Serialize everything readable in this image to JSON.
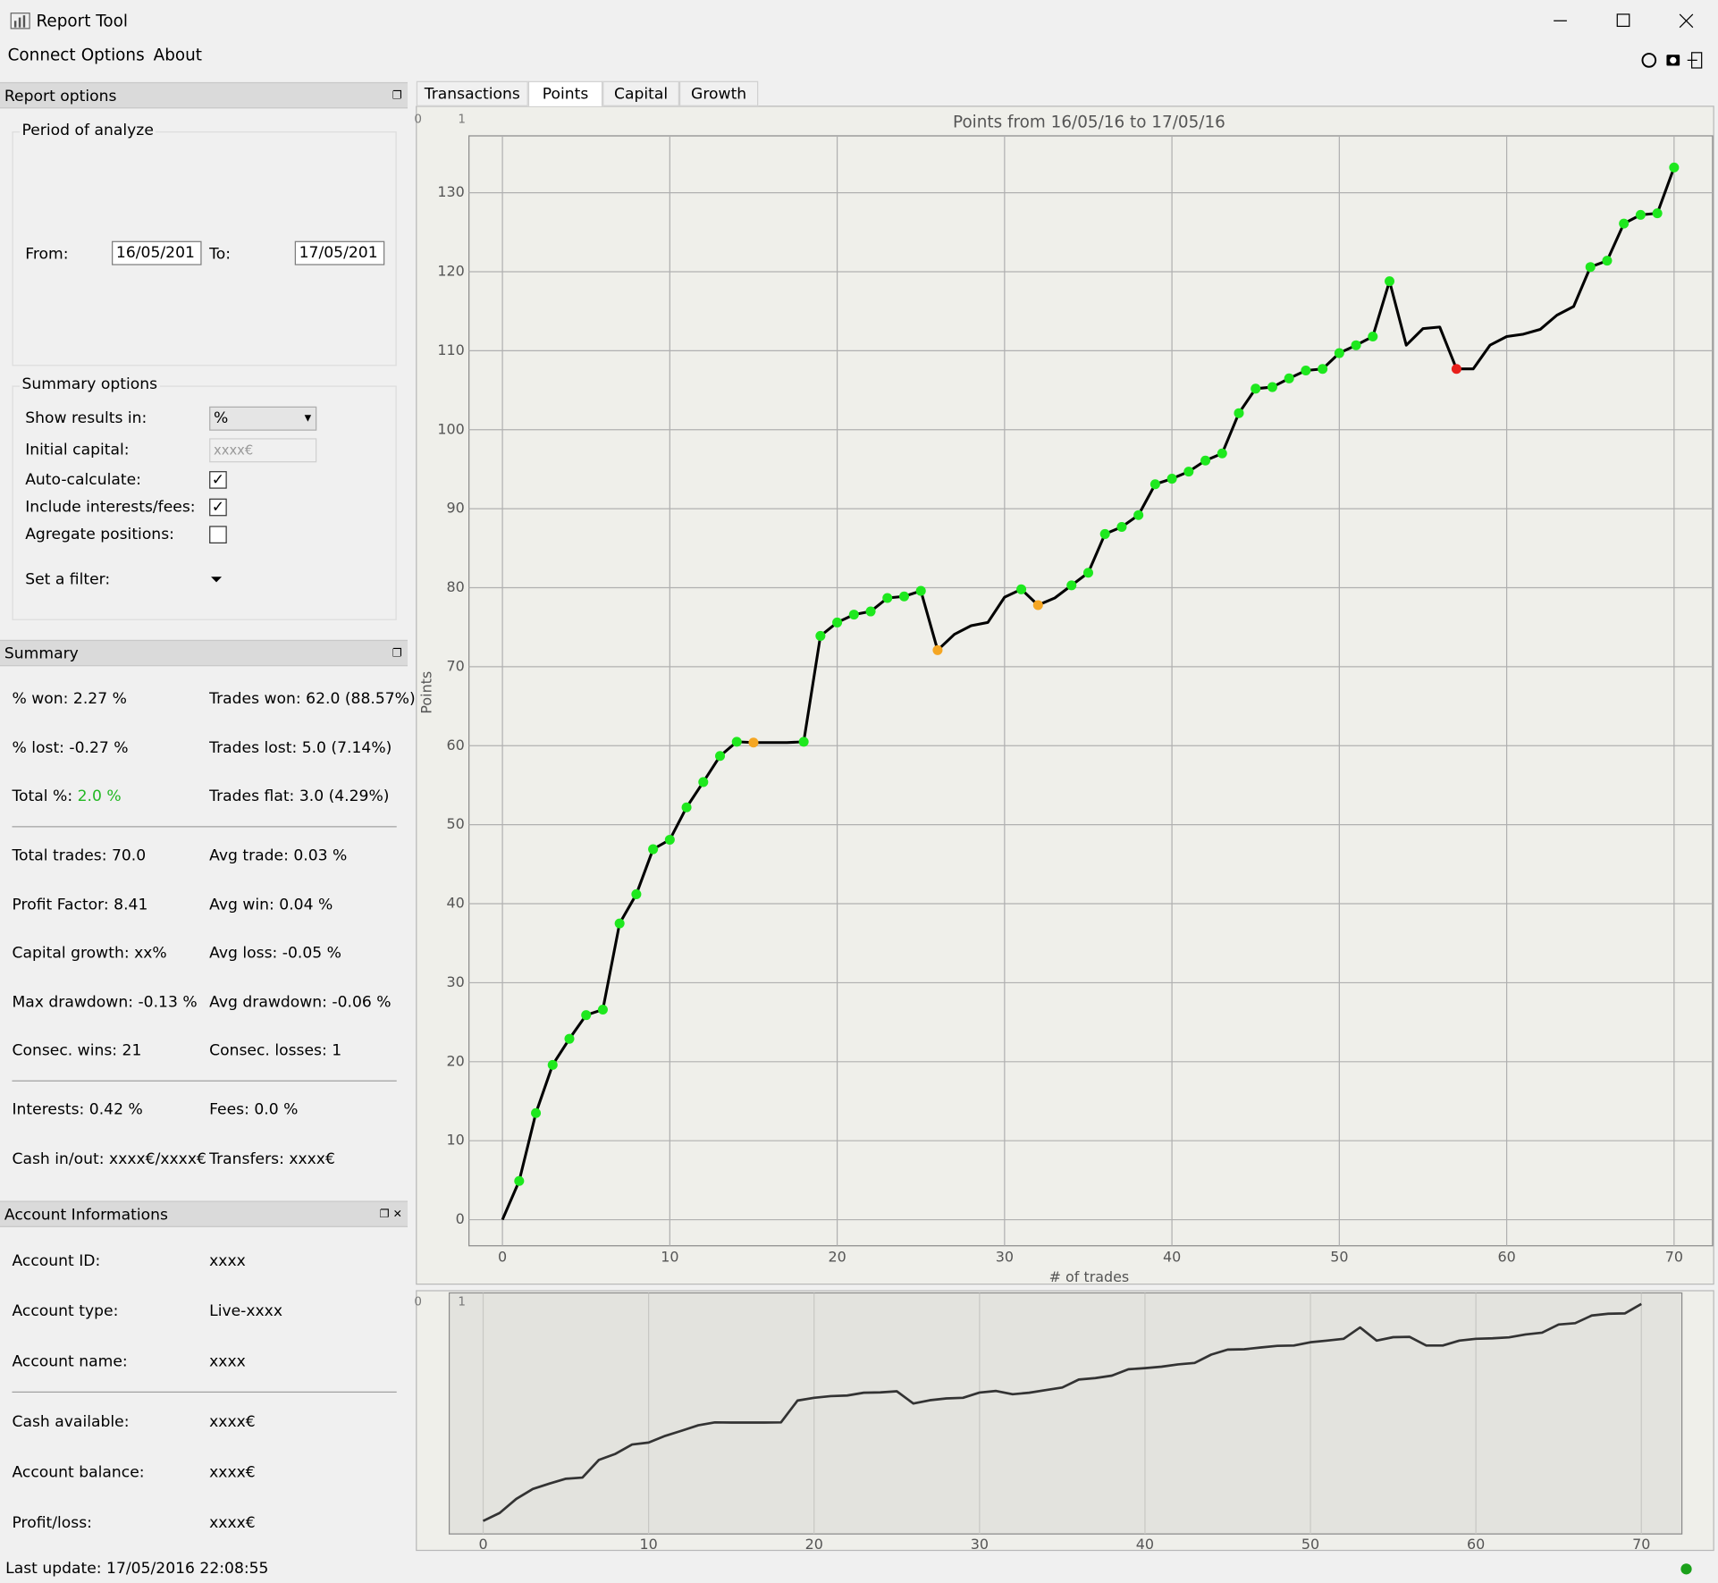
{
  "window": {
    "title": "Report Tool"
  },
  "menu": [
    "Connect",
    "Options",
    "About"
  ],
  "report_options": {
    "title": "Report options",
    "period": {
      "title": "Period of analyze",
      "from_label": "From:",
      "from_value": "16/05/201",
      "to_label": "To:",
      "to_value": "17/05/201"
    },
    "summary_options": {
      "title": "Summary options",
      "rows": [
        {
          "label": "Show results in:",
          "value": "%"
        },
        {
          "label": "Initial capital:",
          "placeholder": "xxxx€"
        },
        {
          "label": "Auto-calculate:",
          "checked": true
        },
        {
          "label": "Include interests/fees:",
          "checked": true
        },
        {
          "label": "Agregate positions:",
          "checked": false
        },
        {
          "label": "Set a filter:"
        }
      ]
    }
  },
  "summary": {
    "title": "Summary",
    "groups": [
      [
        [
          [
            "% won:",
            "2.27 %"
          ],
          [
            "Trades won:",
            "62.0 (88.57%)"
          ]
        ],
        [
          [
            "% lost:",
            "-0.27 %"
          ],
          [
            "Trades lost:",
            "5.0 (7.14%)"
          ]
        ],
        [
          [
            "Total %:",
            "2.0 %"
          ],
          [
            "Trades flat:",
            "3.0 (4.29%)"
          ]
        ]
      ],
      [
        [
          [
            "Total trades:",
            "70.0"
          ],
          [
            "Avg trade:",
            "0.03 %"
          ]
        ],
        [
          [
            "Profit Factor:",
            "8.41"
          ],
          [
            "Avg win:",
            "0.04 %"
          ]
        ],
        [
          [
            "Capital growth:",
            "xx%"
          ],
          [
            "Avg loss:",
            "-0.05 %"
          ]
        ],
        [
          [
            "Max drawdown:",
            "-0.13 %"
          ],
          [
            "Avg drawdown:",
            "-0.06 %"
          ]
        ],
        [
          [
            "Consec. wins:",
            "21"
          ],
          [
            "Consec. losses:",
            "1"
          ]
        ]
      ],
      [
        [
          [
            "Interests:",
            "0.42 %"
          ],
          [
            "Fees:",
            "0.0 %"
          ]
        ],
        [
          [
            "Cash in/out:",
            "xxxx€/xxxx€"
          ],
          [
            "Transfers:",
            "xxxx€"
          ]
        ]
      ]
    ]
  },
  "account": {
    "title": "Account Informations",
    "groups": [
      [
        [
          "Account ID:",
          "xxxx"
        ],
        [
          "Account type:",
          "Live-xxxx"
        ],
        [
          "Account name:",
          "xxxx"
        ]
      ],
      [
        [
          "Cash available:",
          "xxxx€"
        ],
        [
          "Account balance:",
          "xxxx€"
        ],
        [
          "Profit/loss:",
          "xxxx€"
        ]
      ]
    ]
  },
  "status": "Last update: 17/05/2016 22:08:55",
  "tabs": [
    "Transactions",
    "Points",
    "Capital",
    "Growth"
  ],
  "active_tab": 1,
  "chart_data": {
    "type": "line",
    "title": "Points from 16/05/16 to 17/05/16",
    "x_label": "# of trades",
    "y_label": "Points",
    "corner_labels": [
      "0",
      "1"
    ],
    "x": [
      0,
      1,
      2,
      3,
      4,
      5,
      6,
      7,
      8,
      9,
      10,
      11,
      12,
      13,
      14,
      15,
      16,
      17,
      18,
      19,
      20,
      21,
      22,
      23,
      24,
      25,
      26,
      27,
      28,
      29,
      30,
      31,
      32,
      33,
      34,
      35,
      36,
      37,
      38,
      39,
      40,
      41,
      42,
      43,
      44,
      45,
      46,
      47,
      48,
      49,
      50,
      51,
      52,
      53,
      54,
      55,
      56,
      57,
      58,
      59,
      60,
      61,
      62,
      63,
      64,
      65,
      66,
      67,
      68,
      69,
      70
    ],
    "values": [
      0,
      4.9,
      13.5,
      19.6,
      22.9,
      25.9,
      26.6,
      37.5,
      41.2,
      46.9,
      48.1,
      52.2,
      55.4,
      58.7,
      60.5,
      60.4,
      60.4,
      60.4,
      60.5,
      73.9,
      75.6,
      76.6,
      77.0,
      78.7,
      78.9,
      79.6,
      72.1,
      74.1,
      75.2,
      75.6,
      78.8,
      79.8,
      77.8,
      78.7,
      80.3,
      81.9,
      86.8,
      87.7,
      89.2,
      93.1,
      93.8,
      94.7,
      96.1,
      97.0,
      102.1,
      105.2,
      105.4,
      106.5,
      107.5,
      107.7,
      109.7,
      110.7,
      111.8,
      118.8,
      110.7,
      112.8,
      113.0,
      107.7,
      107.7,
      110.7,
      111.8,
      112.1,
      112.7,
      114.5,
      115.6,
      120.6,
      121.4,
      126.1,
      127.2,
      127.4,
      133.2
    ],
    "color": "#000000",
    "marker_colors": [
      null,
      "#1ee81e",
      "#1ee81e",
      "#1ee81e",
      "#1ee81e",
      "#1ee81e",
      "#1ee81e",
      "#1ee81e",
      "#1ee81e",
      "#1ee81e",
      "#1ee81e",
      "#1ee81e",
      "#1ee81e",
      "#1ee81e",
      "#1ee81e",
      "#f5a623",
      null,
      null,
      "#1ee81e",
      "#1ee81e",
      "#1ee81e",
      "#1ee81e",
      "#1ee81e",
      "#1ee81e",
      "#1ee81e",
      "#1ee81e",
      "#f5a623",
      null,
      null,
      null,
      null,
      "#1ee81e",
      "#f5a623",
      null,
      "#1ee81e",
      "#1ee81e",
      "#1ee81e",
      "#1ee81e",
      "#1ee81e",
      "#1ee81e",
      "#1ee81e",
      "#1ee81e",
      "#1ee81e",
      "#1ee81e",
      "#1ee81e",
      "#1ee81e",
      "#1ee81e",
      "#1ee81e",
      "#1ee81e",
      "#1ee81e",
      "#1ee81e",
      "#1ee81e",
      "#1ee81e",
      "#1ee81e",
      null,
      null,
      null,
      "#e8201c",
      null,
      null,
      null,
      null,
      null,
      null,
      null,
      "#1ee81e",
      "#1ee81e",
      "#1ee81e",
      "#1ee81e",
      "#1ee81e",
      "#1ee81e"
    ],
    "xlim": [
      -2,
      72.3
    ],
    "ylim": [
      -3.3,
      137.2
    ],
    "xticks": [
      0,
      10,
      20,
      30,
      40,
      50,
      60,
      70
    ],
    "yticks": [
      0,
      10,
      20,
      30,
      40,
      50,
      60,
      70,
      80,
      90,
      100,
      110,
      120,
      130
    ],
    "grid": true,
    "overview": {
      "color": "#333333",
      "xlim": [
        -2.05,
        72.45
      ],
      "ylim": [
        -8,
        140
      ],
      "xticks": [
        0,
        10,
        20,
        30,
        40,
        50,
        60,
        70
      ]
    }
  }
}
